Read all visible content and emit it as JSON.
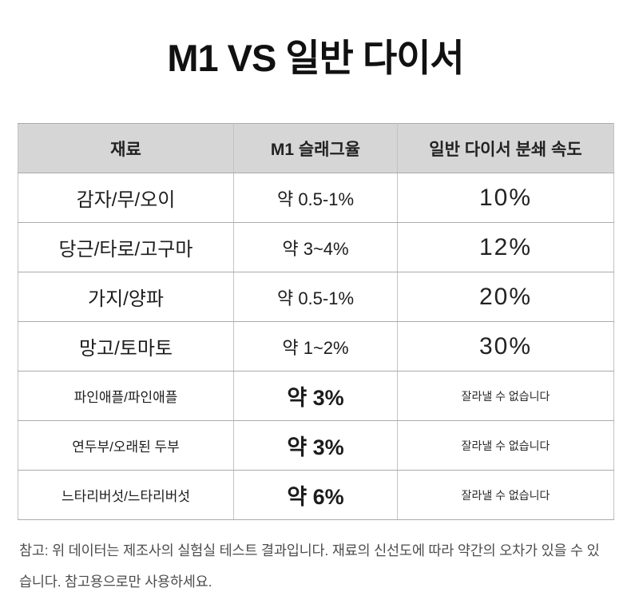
{
  "page": {
    "title": "M1 VS 일반 다이서"
  },
  "table": {
    "headers": [
      "재료",
      "M1 슬래그율",
      "일반 다이서 분쇄 속도"
    ],
    "rows": [
      {
        "material": "감자/무/오이",
        "m1_rate": "약 0.5-1%",
        "dicer": "10%"
      },
      {
        "material": "당근/타로/고구마",
        "m1_rate": "약 3~4%",
        "dicer": "12%"
      },
      {
        "material": "가지/양파",
        "m1_rate": "약 0.5-1%",
        "dicer": "20%"
      },
      {
        "material": "망고/토마토",
        "m1_rate": "약 1~2%",
        "dicer": "30%"
      },
      {
        "material": "파인애플/파인애플",
        "m1_rate": "약 3%",
        "dicer": "잘라낼 수 없습니다"
      },
      {
        "material": "연두부/오래된 두부",
        "m1_rate": "약 3%",
        "dicer": "잘라낼 수 없습니다"
      },
      {
        "material": "느타리버섯/느타리버섯",
        "m1_rate": "약 6%",
        "dicer": "잘라낼 수 없습니다"
      }
    ]
  },
  "footnote": {
    "text": "참고: 위 데이터는 제조사의 실험실 테스트 결과입니다. 재료의 신선도에 따라 약간의 오차가 있을 수 있습니다. 참고용으로만 사용하세요."
  },
  "colors": {
    "header_bg": "#d6d6d6",
    "border_h": "#ababab",
    "border_v": "#c3c3c3",
    "text": "#1c1c1c",
    "footnote_text": "#4d4d4d"
  }
}
